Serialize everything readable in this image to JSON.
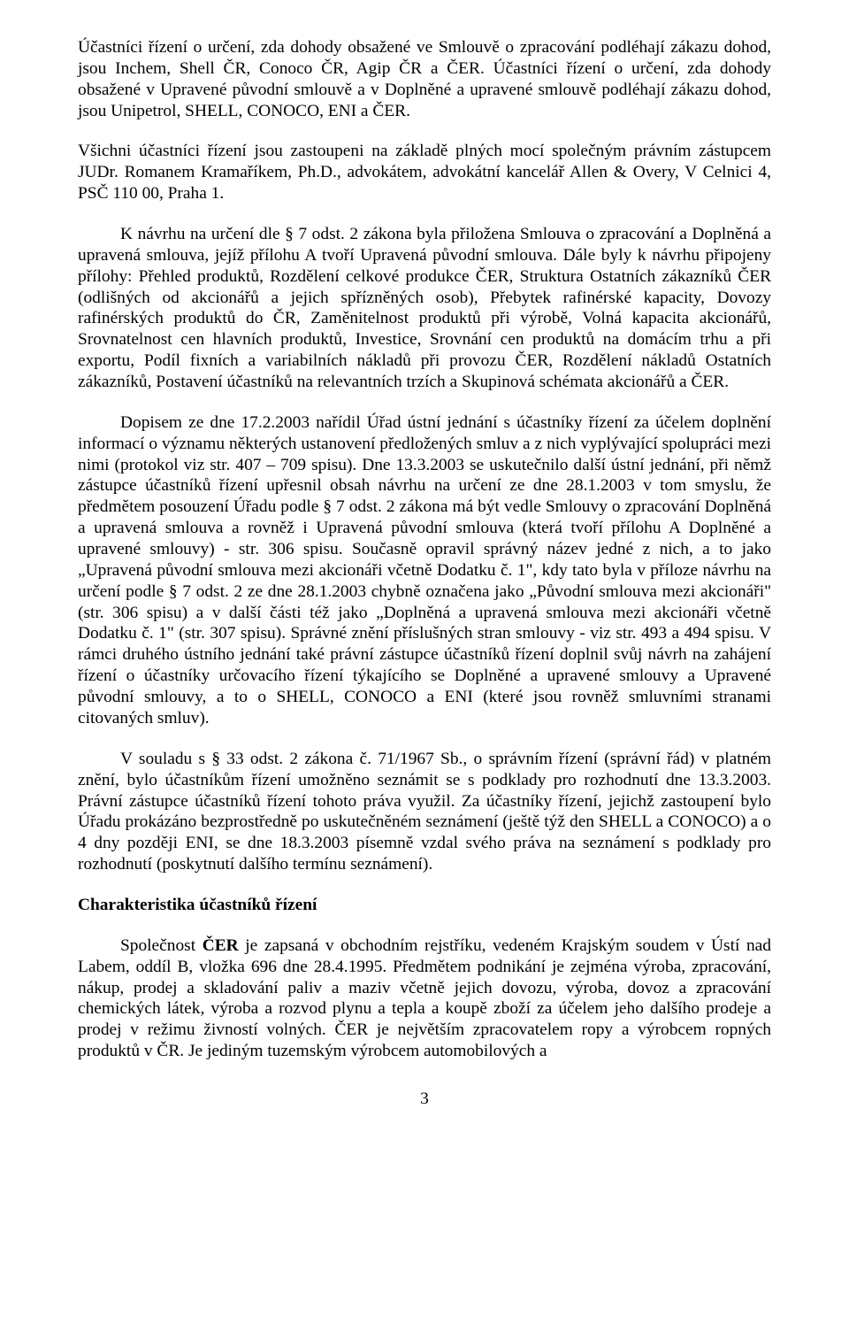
{
  "paragraphs": {
    "p1": "Účastníci řízení o určení, zda dohody obsažené ve Smlouvě o zpracování podléhají zákazu dohod, jsou Inchem, Shell ČR, Conoco ČR, Agip ČR a ČER. Účastníci řízení o určení, zda dohody obsažené v Upravené původní smlouvě a v Doplněné a upravené smlouvě podléhají zákazu dohod, jsou Unipetrol, SHELL, CONOCO, ENI a ČER.",
    "p2": "Všichni účastníci řízení jsou zastoupeni na základě plných mocí společným právním zástupcem  JUDr. Romanem Kramaříkem, Ph.D., advokátem, advokátní kancelář Allen & Overy, V Celnici 4, PSČ 110 00, Praha 1.",
    "p3": "K návrhu na určení dle § 7 odst. 2 zákona byla přiložena Smlouva o zpracování a Doplněná a upravená smlouva, jejíž přílohu A tvoří Upravená původní smlouva. Dále byly k návrhu připojeny přílohy: Přehled produktů, Rozdělení celkové produkce ČER, Struktura Ostatních zákazníků ČER (odlišných od akcionářů a jejich spřízněných osob), Přebytek rafinérské kapacity, Dovozy rafinérských produktů do ČR, Zaměnitelnost produktů při výrobě, Volná kapacita akcionářů, Srovnatelnost cen hlavních produktů, Investice, Srovnání cen produktů na domácím trhu a při exportu, Podíl fixních a variabilních nákladů při provozu ČER, Rozdělení nákladů Ostatních zákazníků, Postavení účastníků na relevantních trzích a Skupinová schémata akcionářů a ČER.",
    "p4": "Dopisem ze dne 17.2.2003 nařídil Úřad ústní jednání s účastníky řízení za účelem doplnění informací o významu některých ustanovení předložených smluv a z nich vyplývající spolupráci mezi nimi (protokol viz str. 407 – 709 spisu). Dne 13.3.2003 se uskutečnilo další ústní jednání, při němž zástupce účastníků řízení upřesnil obsah návrhu na určení ze dne 28.1.2003 v tom smyslu, že předmětem posouzení Úřadu podle § 7 odst. 2 zákona má být vedle Smlouvy o zpracování Doplněná a upravená smlouva a rovněž i Upravená původní smlouva (která tvoří přílohu A Doplněné a upravené smlouvy) - str. 306 spisu. Současně opravil správný název jedné z nich, a to jako „Upravená původní smlouva mezi akcionáři včetně Dodatku č. 1\", kdy tato byla v příloze návrhu na určení podle § 7 odst. 2 ze dne 28.1.2003 chybně označena jako „Původní smlouva mezi akcionáři\" (str. 306 spisu) a v další části též jako „Doplněná a upravená smlouva mezi akcionáři včetně Dodatku č. 1\" (str. 307 spisu). Správné znění příslušných stran smlouvy - viz str. 493 a 494 spisu. V rámci druhého ústního jednání také právní zástupce účastníků řízení doplnil svůj návrh na zahájení řízení o účastníky určovacího řízení týkajícího se Doplněné a upravené smlouvy a Upravené původní smlouvy, a to o SHELL, CONOCO a ENI (které jsou rovněž smluvními stranami citovaných smluv).",
    "p5": "V souladu s § 33 odst. 2 zákona č. 71/1967 Sb., o správním řízení (správní řád) v platném znění, bylo účastníkům řízení umožněno seznámit se s podklady pro rozhodnutí dne 13.3.2003. Právní zástupce účastníků řízení tohoto práva využil. Za účastníky řízení, jejichž zastoupení bylo Úřadu prokázáno bezprostředně po uskutečněném seznámení (ještě týž den SHELL a CONOCO) a o 4 dny později ENI, se dne 18.3.2003 písemně vzdal svého práva na seznámení s podklady pro rozhodnutí (poskytnutí dalšího termínu seznámení).",
    "heading": "Charakteristika účastníků řízení",
    "p6_prefix": "Společnost ",
    "p6_bold": "ČER",
    "p6_rest": " je zapsaná v obchodním rejstříku, vedeném Krajským soudem v Ústí nad Labem, oddíl B, vložka 696 dne 28.4.1995. Předmětem podnikání je zejména výroba, zpracování, nákup, prodej a skladování paliv a maziv včetně jejich dovozu, výroba, dovoz a zpracování chemických látek, výroba a rozvod plynu a tepla a koupě zboží za účelem jeho dalšího prodeje a prodej v režimu živností volných. ČER je největším zpracovatelem ropy a výrobcem ropných produktů v ČR. Je jediným tuzemským výrobcem automobilových a"
  },
  "pageNumber": "3"
}
